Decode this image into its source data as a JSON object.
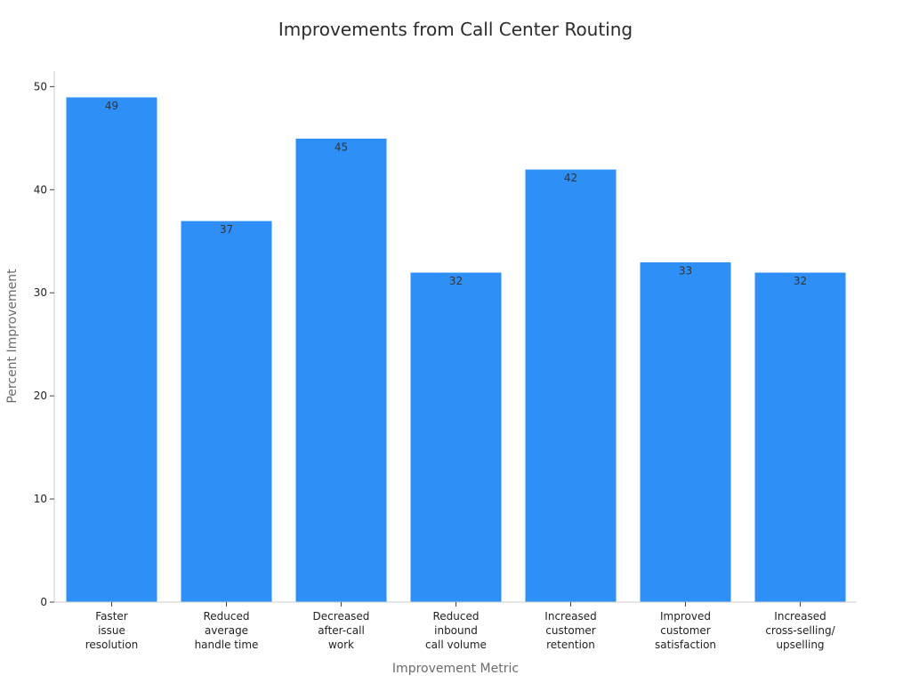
{
  "chart_data": {
    "type": "bar",
    "title": "Improvements from Call Center Routing",
    "xlabel": "Improvement Metric",
    "ylabel": "Percent Improvement",
    "categories": [
      [
        "Faster",
        "issue",
        "resolution"
      ],
      [
        "Reduced",
        "average",
        "handle time"
      ],
      [
        "Decreased",
        "after-call",
        "work"
      ],
      [
        "Reduced",
        "inbound",
        "call volume"
      ],
      [
        "Increased",
        "customer",
        "retention"
      ],
      [
        "Improved",
        "customer",
        "satisfaction"
      ],
      [
        "Increased",
        "cross-selling/",
        "upselling"
      ]
    ],
    "values": [
      49,
      37,
      45,
      32,
      42,
      33,
      32
    ],
    "ylim": [
      0,
      51.5
    ],
    "yticks": [
      0,
      10,
      20,
      30,
      40,
      50
    ],
    "bar_color": "#2e8ff7",
    "grid": false,
    "data_labels": true
  }
}
